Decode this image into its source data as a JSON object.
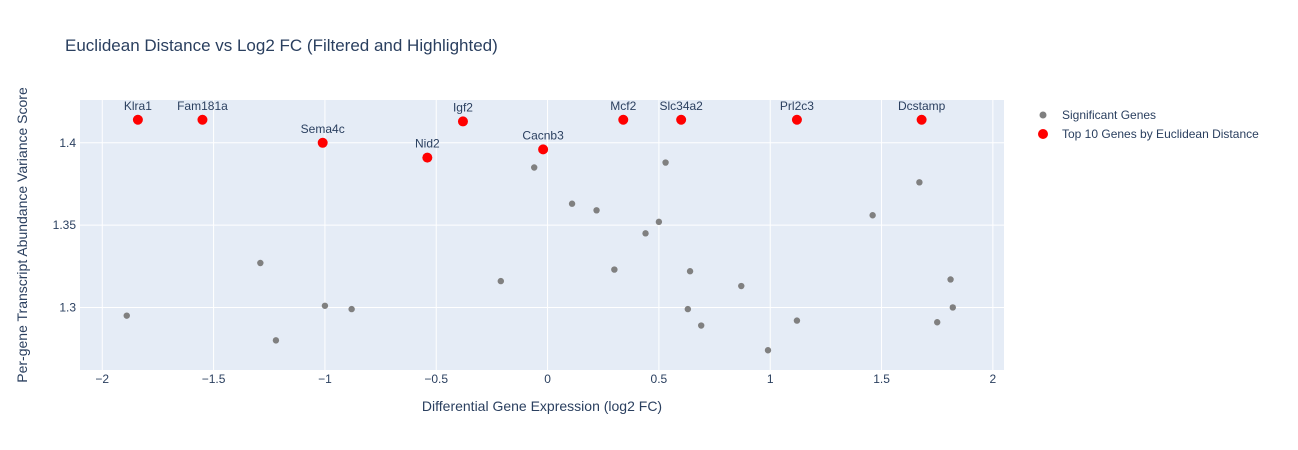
{
  "chart_data": {
    "type": "scatter",
    "title": "Euclidean Distance vs Log2 FC (Filtered and Highlighted)",
    "xlabel": "Differential Gene Expression (log2 FC)",
    "ylabel": "Per-gene Transcript Abundance Variance Score",
    "xlim": [
      -2.1,
      2.05
    ],
    "ylim": [
      1.262,
      1.426
    ],
    "xticks": [
      -2,
      -1.5,
      -1,
      -0.5,
      0,
      0.5,
      1,
      1.5,
      2
    ],
    "xtick_labels": [
      "−2",
      "−1.5",
      "−1",
      "−0.5",
      "0",
      "0.5",
      "1",
      "1.5",
      "2"
    ],
    "yticks": [
      1.3,
      1.35,
      1.4
    ],
    "ytick_labels": [
      "1.3",
      "1.35",
      "1.4"
    ],
    "grid": true,
    "legend_position": "top-right",
    "colors": {
      "significant": "#808080",
      "top10": "#ff0000",
      "plot_bg": "#e5ecf6",
      "grid": "#ffffff",
      "text": "#2a3f5f"
    },
    "series": [
      {
        "name": "Significant Genes",
        "x": [
          -1.89,
          -1.29,
          -1.22,
          -1.0,
          -0.88,
          -0.21,
          -0.06,
          0.11,
          0.22,
          0.3,
          0.44,
          0.5,
          0.53,
          0.63,
          0.64,
          0.69,
          0.87,
          0.99,
          1.12,
          1.46,
          1.67,
          1.75,
          1.81,
          1.82
        ],
        "y": [
          1.295,
          1.327,
          1.28,
          1.301,
          1.299,
          1.316,
          1.385,
          1.363,
          1.359,
          1.323,
          1.345,
          1.352,
          1.388,
          1.299,
          1.322,
          1.289,
          1.313,
          1.274,
          1.292,
          1.356,
          1.376,
          1.291,
          1.317,
          1.3
        ]
      },
      {
        "name": "Top 10 Genes by Euclidean Distance",
        "x": [
          -1.84,
          -1.55,
          -1.01,
          -0.54,
          -0.38,
          -0.02,
          0.34,
          0.6,
          1.12,
          1.68
        ],
        "y": [
          1.414,
          1.414,
          1.4,
          1.391,
          1.413,
          1.396,
          1.414,
          1.414,
          1.414,
          1.414
        ],
        "labels": [
          "Klra1",
          "Fam181a",
          "Sema4c",
          "Nid2",
          "Igf2",
          "Cacnb3",
          "Mcf2",
          "Slc34a2",
          "Prl2c3",
          "Dcstamp"
        ]
      }
    ]
  }
}
